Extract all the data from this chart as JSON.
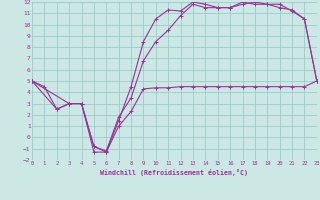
{
  "xlabel": "Windchill (Refroidissement éolien,°C)",
  "bg_color": "#cce8e4",
  "grid_color": "#99cccc",
  "line_color": "#993399",
  "xlim": [
    0,
    23
  ],
  "ylim": [
    -2,
    12
  ],
  "xticks": [
    0,
    1,
    2,
    3,
    4,
    5,
    6,
    7,
    8,
    9,
    10,
    11,
    12,
    13,
    14,
    15,
    16,
    17,
    18,
    19,
    20,
    21,
    22,
    23
  ],
  "yticks": [
    -2,
    -1,
    0,
    1,
    2,
    3,
    4,
    5,
    6,
    7,
    8,
    9,
    10,
    11,
    12
  ],
  "line1_x": [
    0,
    1,
    2,
    3,
    4,
    5,
    6,
    7,
    8,
    9,
    10,
    11,
    12,
    13,
    14,
    15,
    16,
    17,
    18,
    19,
    20,
    21,
    22,
    23
  ],
  "line1_y": [
    5.0,
    4.5,
    2.5,
    3.0,
    3.0,
    -0.8,
    -1.3,
    1.0,
    2.3,
    4.3,
    4.4,
    4.4,
    4.5,
    4.5,
    4.5,
    4.5,
    4.5,
    4.5,
    4.5,
    4.5,
    4.5,
    4.5,
    4.5,
    5.0
  ],
  "line2_x": [
    0,
    2,
    3,
    4,
    5,
    6,
    7,
    8,
    9,
    10,
    11,
    12,
    13,
    14,
    15,
    16,
    17,
    18,
    19,
    20,
    21,
    22,
    23
  ],
  "line2_y": [
    5.0,
    2.5,
    3.0,
    3.0,
    -1.3,
    -1.3,
    1.5,
    4.5,
    8.5,
    10.5,
    11.3,
    11.2,
    12.0,
    11.8,
    11.5,
    11.5,
    12.0,
    11.8,
    11.8,
    11.5,
    11.3,
    10.5,
    5.0
  ],
  "line3_x": [
    0,
    3,
    4,
    5,
    6,
    7,
    8,
    9,
    10,
    11,
    12,
    13,
    14,
    15,
    16,
    17,
    18,
    19,
    20,
    21,
    22,
    23
  ],
  "line3_y": [
    5.0,
    3.0,
    3.0,
    -0.8,
    -1.2,
    1.8,
    3.5,
    6.8,
    8.5,
    9.5,
    10.8,
    11.8,
    11.5,
    11.5,
    11.5,
    11.8,
    12.0,
    11.8,
    11.8,
    11.2,
    10.5,
    5.0
  ]
}
